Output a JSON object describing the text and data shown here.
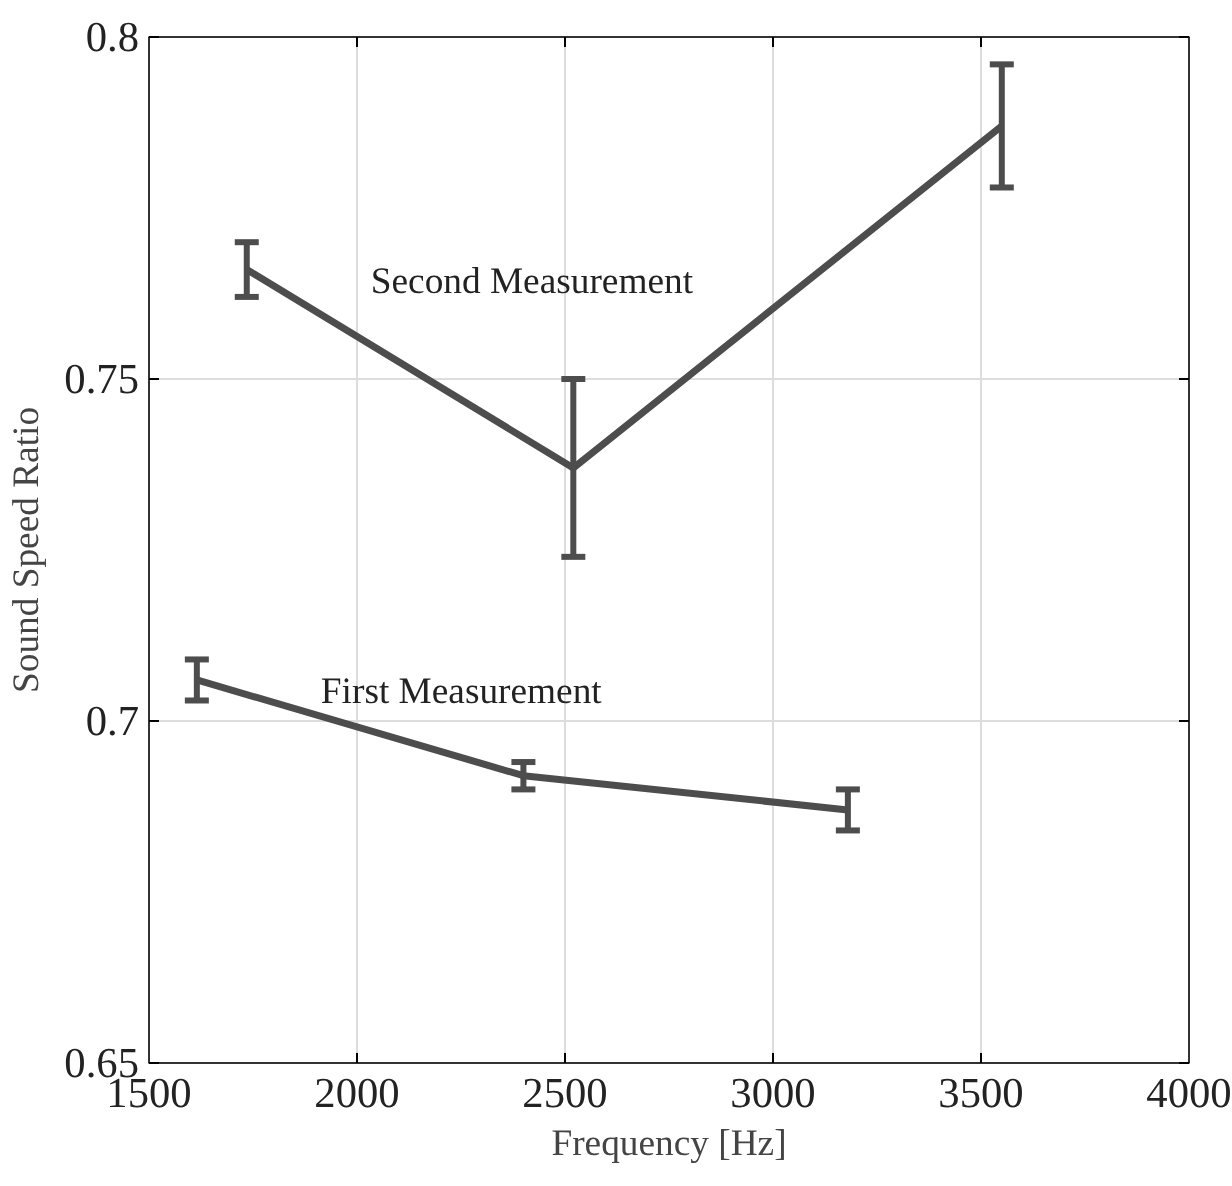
{
  "chart_data": {
    "type": "line",
    "xlabel": "Frequency [Hz]",
    "ylabel": "Sound Speed Ratio",
    "xlim": [
      1500,
      4000
    ],
    "xticks": [
      1500,
      2000,
      2500,
      3000,
      3500,
      4000
    ],
    "ylim": [
      0.65,
      0.8
    ],
    "yticks": [
      0.65,
      {
        "value": 0.7,
        "label": "0.7"
      },
      0.75,
      {
        "value": 0.8,
        "label": "0.8"
      }
    ],
    "grid": true,
    "marker": "none",
    "line_style": "solid",
    "series": [
      {
        "name": "Second Measurement",
        "color": "#4d4d4d",
        "x": [
          1735,
          2520,
          3550
        ],
        "values": [
          0.766,
          0.737,
          0.787
        ],
        "errors": [
          [
            0.762,
            0.77
          ],
          [
            0.724,
            0.75
          ],
          [
            0.778,
            0.796
          ]
        ]
      },
      {
        "name": "First Measurement",
        "color": "#4d4d4d",
        "x": [
          1615,
          2400,
          3180
        ],
        "values": [
          0.706,
          0.692,
          0.687
        ],
        "errors": [
          [
            0.703,
            0.709
          ],
          [
            0.69,
            0.694
          ],
          [
            0.684,
            0.69
          ]
        ]
      }
    ]
  }
}
